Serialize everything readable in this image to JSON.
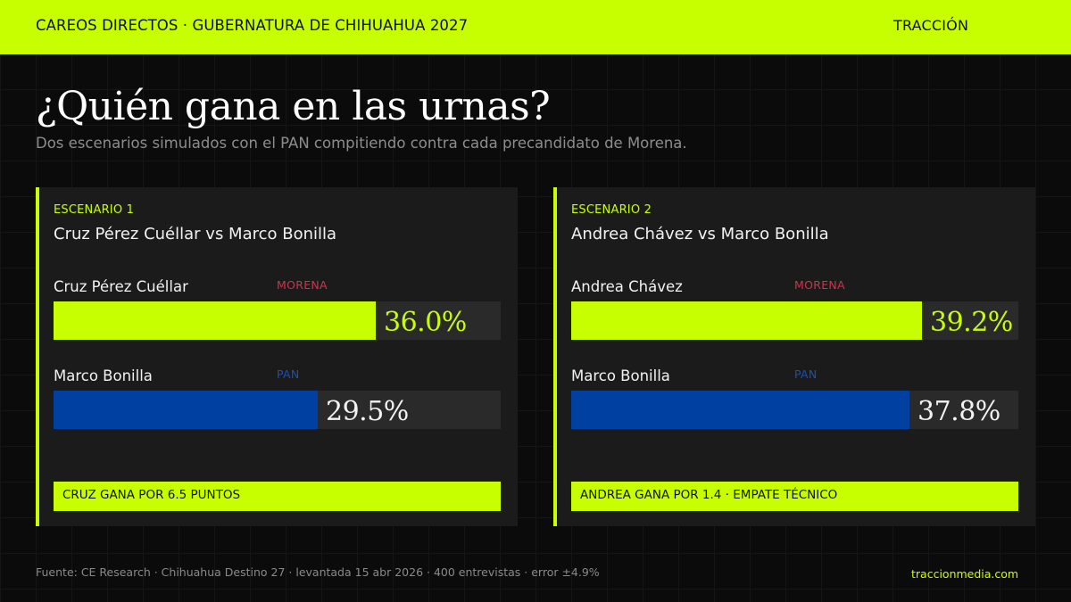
{
  "header": {
    "kicker": "CAREOS DIRECTOS · GUBERNATURA DE CHIHUAHUA 2027",
    "brand": "TRACCIÓN"
  },
  "title": "¿Quién gana en las urnas?",
  "subtitle": "Dos escenarios simulados con el PAN compitiendo contra cada precandidato de Morena.",
  "colors": {
    "accent": "#c8ff00",
    "morena_label": "#d0334a",
    "pan": "#0040a0",
    "pan_label": "#1d4fae",
    "card_bg": "#1b1b1b",
    "track_bg": "#2a2a2a",
    "page_bg": "#0b0b0b"
  },
  "scenarios": [
    {
      "label": "ESCENARIO 1",
      "matchup": "Cruz Pérez Cuéllar vs Marco Bonilla",
      "candidates": [
        {
          "name": "Cruz Pérez Cuéllar",
          "party": "MORENA",
          "value": 36.0,
          "value_label": "36.0%"
        },
        {
          "name": "Marco Bonilla",
          "party": "PAN",
          "value": 29.5,
          "value_label": "29.5%"
        }
      ],
      "verdict": "CRUZ GANA POR 6.5 PUNTOS"
    },
    {
      "label": "ESCENARIO 2",
      "matchup": "Andrea Chávez vs Marco Bonilla",
      "candidates": [
        {
          "name": "Andrea Chávez",
          "party": "MORENA",
          "value": 39.2,
          "value_label": "39.2%"
        },
        {
          "name": "Marco Bonilla",
          "party": "PAN",
          "value": 37.8,
          "value_label": "37.8%"
        }
      ],
      "verdict": "ANDREA GANA POR 1.4 · EMPATE TÉCNICO"
    }
  ],
  "footer": {
    "source": "Fuente: CE Research · Chihuahua Destino 27 · levantada 15 abr 2026 · 400 entrevistas · error ±4.9%",
    "site": "traccionmedia.com"
  },
  "chart_data": [
    {
      "type": "bar",
      "orientation": "horizontal",
      "title": "ESCENARIO 1 · Cruz Pérez Cuéllar vs Marco Bonilla",
      "categories": [
        "Cruz Pérez Cuéllar (MORENA)",
        "Marco Bonilla (PAN)"
      ],
      "values": [
        36.0,
        29.5
      ],
      "unit": "%",
      "xlim": [
        0,
        50
      ],
      "colors": [
        "#c8ff00",
        "#0040a0"
      ],
      "annotation": "CRUZ GANA POR 6.5 PUNTOS",
      "grid": false,
      "legend": "none"
    },
    {
      "type": "bar",
      "orientation": "horizontal",
      "title": "ESCENARIO 2 · Andrea Chávez vs Marco Bonilla",
      "categories": [
        "Andrea Chávez (MORENA)",
        "Marco Bonilla (PAN)"
      ],
      "values": [
        39.2,
        37.8
      ],
      "unit": "%",
      "xlim": [
        0,
        50
      ],
      "colors": [
        "#c8ff00",
        "#0040a0"
      ],
      "annotation": "ANDREA GANA POR 1.4 · EMPATE TÉCNICO",
      "grid": false,
      "legend": "none"
    }
  ]
}
